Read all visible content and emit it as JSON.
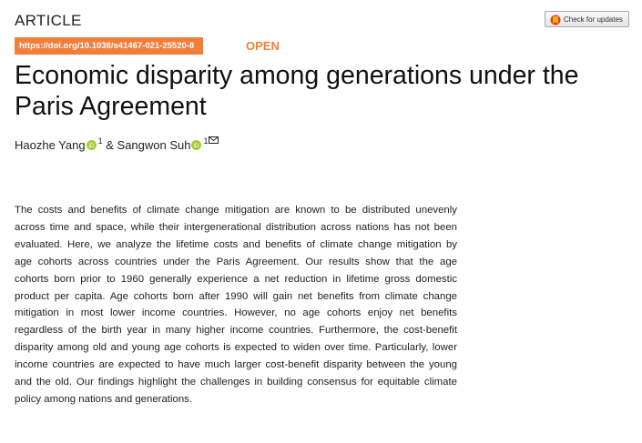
{
  "header": {
    "section": "ARTICLE",
    "doi": "https://doi.org/10.1038/s41467-021-25520-8",
    "access": "OPEN",
    "check_button": "Check for updates"
  },
  "title": {
    "lines": [
      "Economic disparity among generations under the",
      "Paris Agreement"
    ]
  },
  "authors": [
    {
      "name": "Haozhe Yang",
      "affiliation": "1"
    },
    {
      "name": "Sangwon Suh",
      "affiliation": "1"
    }
  ],
  "authors_separator": "&",
  "abstract": {
    "lines": [
      "The costs and benefits of climate change mitigation are known to be distributed unevenly",
      "across time and space, while their intergenerational distribution across nations has not been",
      "evaluated. Here, we analyze the lifetime costs and benefits of climate change mitigation by",
      "age cohorts across countries under the Paris Agreement. Our results show that the age",
      "cohorts born prior to 1960 generally experience a net reduction in lifetime gross domestic",
      "product per capita. Age cohorts born after 1990 will gain net benefits from climate change",
      "mitigation in most lower income countries. However, no age cohorts enjoy net benefits",
      "regardless of the birth year in many higher income countries. Furthermore, the cost-benefit",
      "disparity among old and young age cohorts is expected to widen over time. Particularly, lower",
      "income countries are expected to have much larger cost-benefit disparity between the young",
      "and the old. Our findings highlight the challenges in building consensus for equitable climate",
      "policy among nations and generations."
    ]
  }
}
